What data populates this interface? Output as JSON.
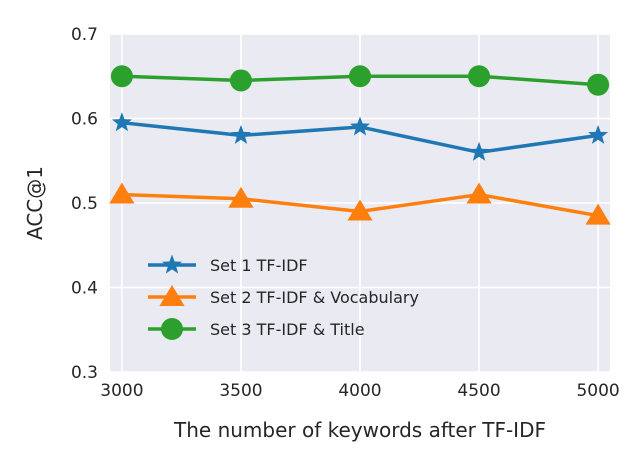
{
  "chart_data": {
    "type": "line",
    "title": "",
    "xlabel": "The number of keywords after TF-IDF",
    "ylabel": "ACC@1",
    "x": [
      3000,
      3500,
      4000,
      4500,
      5000
    ],
    "xticks": [
      "3000",
      "3500",
      "4000",
      "4500",
      "5000"
    ],
    "yticks": [
      "0.3",
      "0.4",
      "0.5",
      "0.6",
      "0.7"
    ],
    "ylim": [
      0.3,
      0.7
    ],
    "xlim": [
      2950,
      5050
    ],
    "grid": true,
    "legend_position": "lower-left",
    "series": [
      {
        "name": "Set 1 TF-IDF",
        "values": [
          0.595,
          0.58,
          0.59,
          0.56,
          0.58
        ],
        "color": "#1f77b4",
        "marker": "star"
      },
      {
        "name": "Set 2 TF-IDF & Vocabulary",
        "values": [
          0.51,
          0.505,
          0.49,
          0.51,
          0.485
        ],
        "color": "#ff7f0e",
        "marker": "triangle"
      },
      {
        "name": "Set 3 TF-IDF & Title",
        "values": [
          0.65,
          0.645,
          0.65,
          0.65,
          0.64
        ],
        "color": "#2ca02c",
        "marker": "circle"
      }
    ],
    "background_color": "#eaeaf2",
    "grid_color": "#ffffff"
  }
}
